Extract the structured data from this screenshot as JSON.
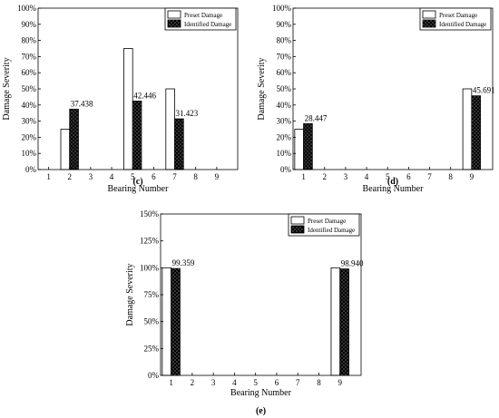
{
  "chart_data": [
    {
      "type": "bar",
      "panel_label": "(c)",
      "categories": [
        "1",
        "2",
        "3",
        "4",
        "5",
        "6",
        "7",
        "8",
        "9"
      ],
      "series": [
        {
          "name": "Preset Damage",
          "values": [
            0,
            25,
            0,
            0,
            75,
            0,
            50,
            0,
            0
          ]
        },
        {
          "name": "Identified Damage",
          "values": [
            0,
            37.438,
            0,
            0,
            42.446,
            0,
            31.423,
            0,
            0
          ]
        }
      ],
      "data_labels": [
        {
          "category": "2",
          "text": "37.438"
        },
        {
          "category": "5",
          "text": "42.446"
        },
        {
          "category": "7",
          "text": "31.423"
        }
      ],
      "xlabel": "Bearing Number",
      "ylabel": "Damage Severity",
      "ylim": [
        0,
        100
      ],
      "yticks": [
        "0%",
        "10%",
        "20%",
        "30%",
        "40%",
        "50%",
        "60%",
        "70%",
        "80%",
        "90%",
        "100%"
      ],
      "legend_position": "top-right",
      "grid": false
    },
    {
      "type": "bar",
      "panel_label": "(d)",
      "categories": [
        "1",
        "2",
        "3",
        "4",
        "5",
        "6",
        "7",
        "8",
        "9"
      ],
      "series": [
        {
          "name": "Preset Damage",
          "values": [
            25,
            0,
            0,
            0,
            0,
            0,
            0,
            0,
            50
          ]
        },
        {
          "name": "Identified Damage",
          "values": [
            28.447,
            0,
            0,
            0,
            0,
            0,
            0,
            0,
            45.691
          ]
        }
      ],
      "data_labels": [
        {
          "category": "1",
          "text": "28.447"
        },
        {
          "category": "9",
          "text": "45.691"
        }
      ],
      "xlabel": "Bearing Number",
      "ylabel": "Damage Severity",
      "ylim": [
        0,
        100
      ],
      "yticks": [
        "0%",
        "10%",
        "20%",
        "30%",
        "40%",
        "50%",
        "60%",
        "70%",
        "80%",
        "90%",
        "100%"
      ],
      "legend_position": "top-right",
      "grid": false
    },
    {
      "type": "bar",
      "panel_label": "(e)",
      "categories": [
        "1",
        "2",
        "3",
        "4",
        "5",
        "6",
        "7",
        "8",
        "9"
      ],
      "series": [
        {
          "name": "Preset Damage",
          "values": [
            100,
            0,
            0,
            0,
            0,
            0,
            0,
            0,
            100
          ]
        },
        {
          "name": "Identified Damage",
          "values": [
            99.359,
            0,
            0,
            0,
            0,
            0,
            0,
            0,
            98.94
          ]
        }
      ],
      "data_labels": [
        {
          "category": "1",
          "text": "99.359"
        },
        {
          "category": "9",
          "text": "98.940"
        }
      ],
      "xlabel": "Bearing Number",
      "ylabel": "Damage Severity",
      "ylim": [
        0,
        150
      ],
      "yticks": [
        "0%",
        "25%",
        "50%",
        "75%",
        "100%",
        "125%",
        "150%"
      ],
      "legend_position": "top-right",
      "grid": false
    }
  ]
}
